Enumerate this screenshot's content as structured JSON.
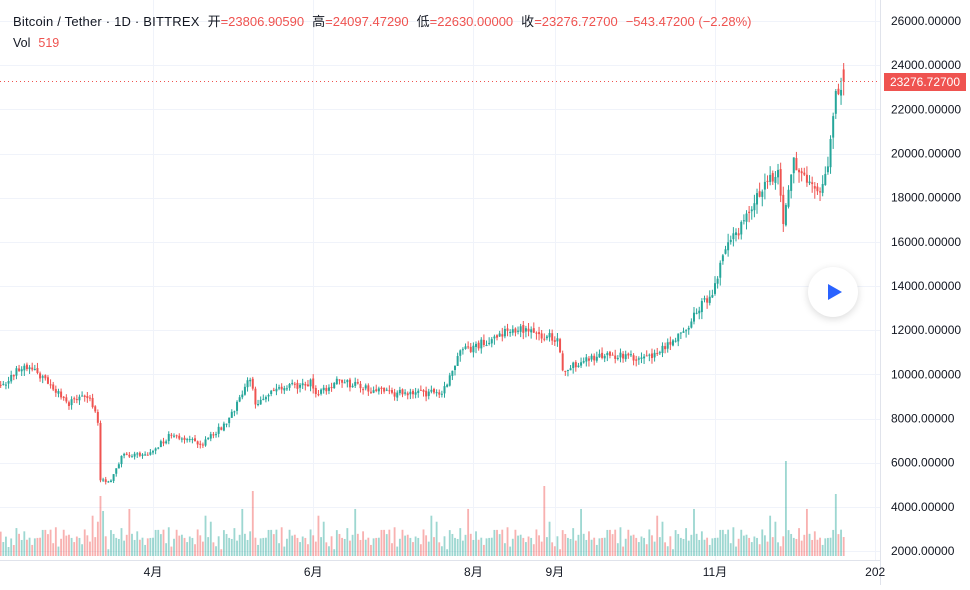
{
  "legend": {
    "symbol": "Bitcoin / Tether · 1D · BITTREX",
    "open_label": "开",
    "open_value": "=23806.90590",
    "high_label": "高",
    "high_value": "=24097.47290",
    "low_label": "低",
    "low_value": "=22630.00000",
    "close_label": "收",
    "close_value": "=23276.72700",
    "change": "−543.47200 (−2.28%)"
  },
  "volume": {
    "label": "Vol",
    "value": "519"
  },
  "last_price": "23276.72700",
  "colors": {
    "up": "#26a69a",
    "down": "#ef5350",
    "grid": "#f0f3fa",
    "axis_text": "#131722"
  },
  "play_icon": "play-icon",
  "chart_data": {
    "type": "candlestick",
    "ylim": [
      1500,
      26500
    ],
    "yticks": [
      "26000.00000",
      "24000.00000",
      "22000.00000",
      "20000.00000",
      "18000.00000",
      "16000.00000",
      "14000.00000",
      "12000.00000",
      "10000.00000",
      "8000.00000",
      "6000.00000",
      "4000.00000",
      "2000.00000"
    ],
    "ytick_values": [
      26000,
      24000,
      22000,
      20000,
      18000,
      16000,
      14000,
      12000,
      10000,
      8000,
      6000,
      4000,
      2000
    ],
    "xticks": [
      "4月",
      "6月",
      "8月",
      "9月",
      "11月",
      "202"
    ],
    "xtick_dates": [
      "2020-04-01",
      "2020-06-01",
      "2020-08-01",
      "2020-09-01",
      "2020-11-01",
      "2021-01-01"
    ],
    "date_range": [
      "2020-02-01",
      "2020-12-20"
    ],
    "close_anchors": [
      [
        "2020-02-01",
        9300
      ],
      [
        "2020-02-10",
        10200
      ],
      [
        "2020-02-14",
        10350
      ],
      [
        "2020-02-20",
        9700
      ],
      [
        "2020-02-29",
        8700
      ],
      [
        "2020-03-08",
        9000
      ],
      [
        "2020-03-11",
        7900
      ],
      [
        "2020-03-12",
        5200
      ],
      [
        "2020-03-16",
        5100
      ],
      [
        "2020-03-20",
        6300
      ],
      [
        "2020-03-31",
        6400
      ],
      [
        "2020-04-07",
        7200
      ],
      [
        "2020-04-20",
        6900
      ],
      [
        "2020-04-29",
        7800
      ],
      [
        "2020-05-08",
        9800
      ],
      [
        "2020-05-10",
        8700
      ],
      [
        "2020-05-20",
        9400
      ],
      [
        "2020-05-31",
        9600
      ],
      [
        "2020-06-02",
        9000
      ],
      [
        "2020-06-10",
        9700
      ],
      [
        "2020-06-30",
        9150
      ],
      [
        "2020-07-20",
        9150
      ],
      [
        "2020-07-27",
        11000
      ],
      [
        "2020-08-10",
        11700
      ],
      [
        "2020-08-17",
        12100
      ],
      [
        "2020-09-02",
        11600
      ],
      [
        "2020-09-04",
        10200
      ],
      [
        "2020-09-20",
        10900
      ],
      [
        "2020-10-08",
        10700
      ],
      [
        "2020-10-20",
        11900
      ],
      [
        "2020-10-31",
        13800
      ],
      [
        "2020-11-05",
        15500
      ],
      [
        "2020-11-17",
        18000
      ],
      [
        "2020-11-25",
        19200
      ],
      [
        "2020-11-27",
        17000
      ],
      [
        "2020-12-01",
        19500
      ],
      [
        "2020-12-10",
        18200
      ],
      [
        "2020-12-14",
        19200
      ],
      [
        "2020-12-17",
        22800
      ],
      [
        "2020-12-20",
        23276.727
      ]
    ]
  }
}
